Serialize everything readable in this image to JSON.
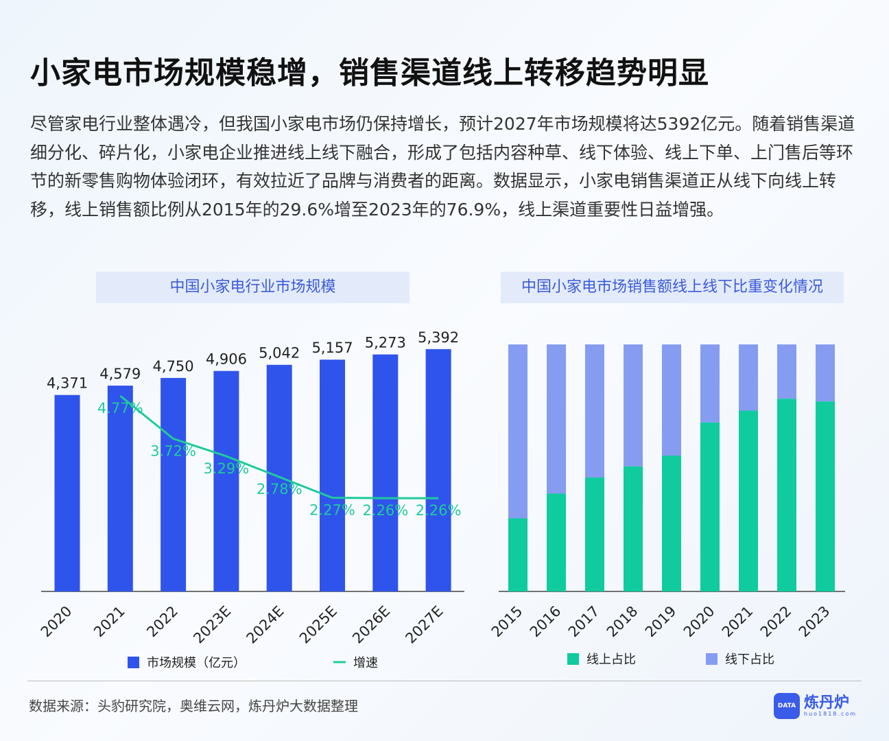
{
  "title": "小家电市场规模稳增，销售渠道线上转移趋势明显",
  "description": "尽管家电行业整体遇冷，但我国小家电市场仍保持增长，预计2027年市场规模将达5392亿元。随着销售渠道细分化、碎片化，小家电企业推进线上线下融合，形成了包括内容种草、线下体验、线上下单、上门售后等环节的新零售购物体验闭环，有效拉近了品牌与消费者的距离。数据显示，小家电销售渠道正从线下向线上转移，线上销售额比例从2015年的29.6%增至2023年的76.9%，线上渠道重要性日益增强。",
  "source": "数据来源：头豹研究院，奥维云网，炼丹炉大数据整理",
  "logo": {
    "name": "炼丹炉",
    "url": "huo1818.com",
    "icon_text": "DATA"
  },
  "chart_data": [
    {
      "type": "bar+line",
      "title": "中国小家电行业市场规模",
      "categories": [
        "2020",
        "2021",
        "2022",
        "2023E",
        "2024E",
        "2025E",
        "2026E",
        "2027E"
      ],
      "series": [
        {
          "name": "市场规模（亿元）",
          "type": "bar",
          "color": "#2f54eb",
          "values": [
            4371,
            4579,
            4750,
            4906,
            5042,
            5157,
            5273,
            5392
          ],
          "labels": [
            "4,371",
            "4,579",
            "4,750",
            "4,906",
            "5,042",
            "5,157",
            "5,273",
            "5,392"
          ]
        },
        {
          "name": "增速",
          "type": "line",
          "color": "#1ecb9a",
          "values": [
            null,
            4.77,
            3.72,
            3.29,
            2.78,
            2.27,
            2.26,
            2.26
          ],
          "labels": [
            "",
            "4.77%",
            "3.72%",
            "3.29%",
            "2.78%",
            "2.27%",
            "2.26%",
            "2.26%"
          ]
        }
      ],
      "legend": "bottom"
    },
    {
      "type": "stacked-bar-100",
      "title": "中国小家电市场销售额线上线下比重变化情况",
      "categories": [
        "2015",
        "2016",
        "2017",
        "2018",
        "2019",
        "2020",
        "2021",
        "2022",
        "2023"
      ],
      "series": [
        {
          "name": "线上占比",
          "color": "#0fcb9e",
          "values": [
            29.6,
            39.6,
            46.1,
            50.6,
            55.0,
            68.4,
            73.2,
            78.0,
            76.9
          ]
        },
        {
          "name": "线下占比",
          "color": "#859cf0",
          "values": [
            70.4,
            60.4,
            53.9,
            49.4,
            45.0,
            31.6,
            26.8,
            22.0,
            23.1
          ]
        }
      ],
      "ylim": [
        0,
        100
      ],
      "legend": "bottom"
    }
  ]
}
